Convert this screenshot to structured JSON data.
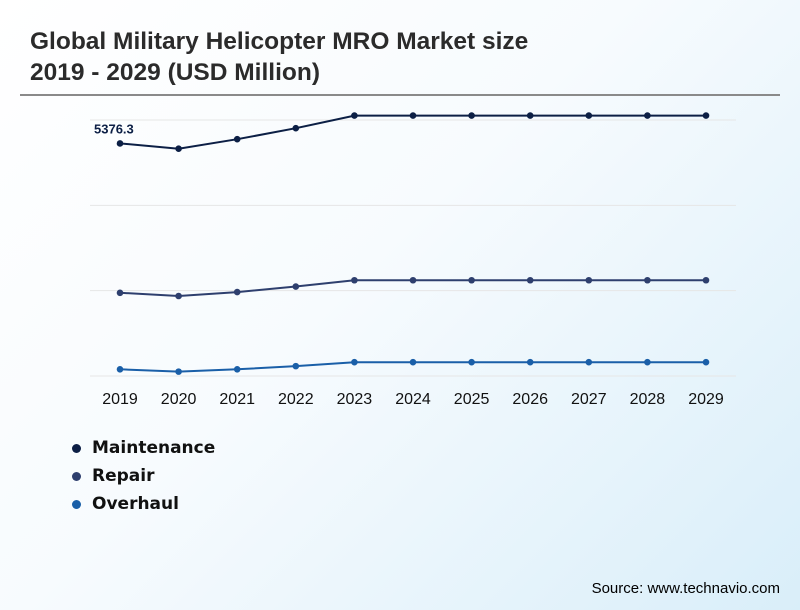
{
  "title_lines": [
    "Global Military Helicopter MRO Market size",
    "2019 - 2029 (USD Million)"
  ],
  "source": "Source: www.technavio.com",
  "colors": {
    "Maintenance": "#0c1f45",
    "Repair": "#2e3f6e",
    "Overhaul": "#1a5fa8",
    "grid": "#e6e6e6"
  },
  "chart_data": {
    "type": "line",
    "title": "Global Military Helicopter MRO Market size 2019 - 2029 (USD Million)",
    "categories": [
      "2019",
      "2020",
      "2021",
      "2022",
      "2023",
      "2024",
      "2025",
      "2026",
      "2027",
      "2028",
      "2029"
    ],
    "series": [
      {
        "name": "Maintenance",
        "values": [
          5376.3,
          5310,
          5430,
          5570,
          5730,
          5730,
          5730,
          5730,
          5730,
          5730,
          5730
        ]
      },
      {
        "name": "Repair",
        "values": [
          3480,
          3440,
          3490,
          3560,
          3640,
          3640,
          3640,
          3640,
          3640,
          3640,
          3640
        ]
      },
      {
        "name": "Overhaul",
        "values": [
          2510,
          2480,
          2510,
          2550,
          2600,
          2600,
          2600,
          2600,
          2600,
          2600,
          2600
        ]
      }
    ],
    "annotations": [
      {
        "series": "Maintenance",
        "category": "2019",
        "text": "5376.3"
      }
    ],
    "ylim": [
      2450,
      5750
    ],
    "grid": true,
    "legend": "bottom-left"
  }
}
